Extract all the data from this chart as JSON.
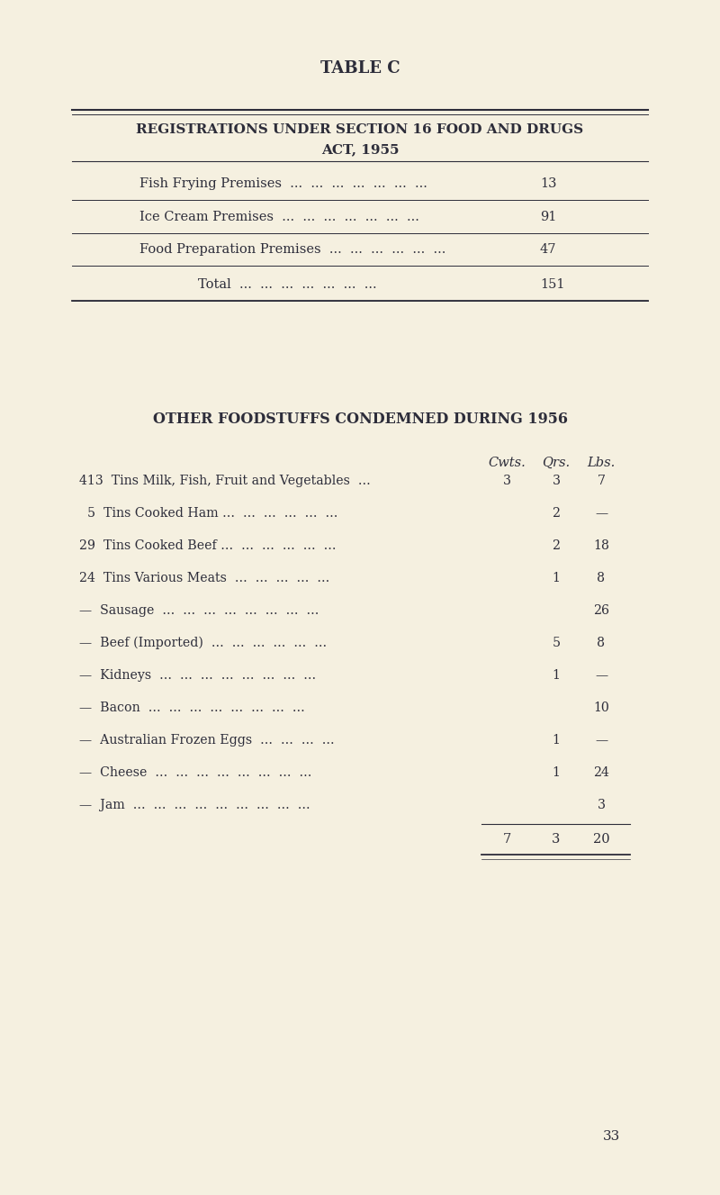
{
  "bg_color": "#f5f0e0",
  "text_color": "#2d2d3a",
  "page_title": "TABLE C",
  "table1_header_line1": "REGISTRATIONS UNDER SECTION 16 FOOD AND DRUGS",
  "table1_header_line2": "ACT, 1955",
  "table1_rows": [
    [
      "Fish Frying Premises  ...  ...  ...  ...  ...  ...  ...",
      "13"
    ],
    [
      "Ice Cream Premises  ...  ...  ...  ...  ...  ...  ...",
      "91"
    ],
    [
      "Food Preparation Premises  ...  ...  ...  ...  ...  ...",
      "47"
    ],
    [
      "Total  ...  ...  ...  ...  ...  ...  ...",
      "151"
    ]
  ],
  "table2_title": "OTHER FOODSTUFFS CONDEMNED DURING 1956",
  "table2_col_headers": [
    "Cwts.",
    "Qrs.",
    "Lbs."
  ],
  "table2_rows": [
    [
      "413  Tins Milk, Fish, Fruit and Vegetables  ...",
      "3",
      "3",
      "7"
    ],
    [
      "  5  Tins Cooked Ham ...  ...  ...  ...  ...  ...",
      "",
      "2",
      "—"
    ],
    [
      "29  Tins Cooked Beef ...  ...  ...  ...  ...  ...",
      "",
      "2",
      "18"
    ],
    [
      "24  Tins Various Meats  ...  ...  ...  ...  ...",
      "",
      "1",
      "8"
    ],
    [
      "—  Sausage  ...  ...  ...  ...  ...  ...  ...  ...",
      "",
      "",
      "26"
    ],
    [
      "—  Beef (Imported)  ...  ...  ...  ...  ...  ...",
      "",
      "5",
      "8"
    ],
    [
      "—  Kidneys  ...  ...  ...  ...  ...  ...  ...  ...",
      "",
      "1",
      "—"
    ],
    [
      "—  Bacon  ...  ...  ...  ...  ...  ...  ...  ...",
      "",
      "",
      "10"
    ],
    [
      "—  Australian Frozen Eggs  ...  ...  ...  ...",
      "",
      "1",
      "—"
    ],
    [
      "—  Cheese  ...  ...  ...  ...  ...  ...  ...  ...",
      "",
      "1",
      "24"
    ],
    [
      "—  Jam  ...  ...  ...  ...  ...  ...  ...  ...  ...",
      "",
      "",
      "3"
    ]
  ],
  "table2_totals": [
    "7",
    "3",
    "20"
  ],
  "page_number": "33",
  "line_color": "#2d2d3a"
}
